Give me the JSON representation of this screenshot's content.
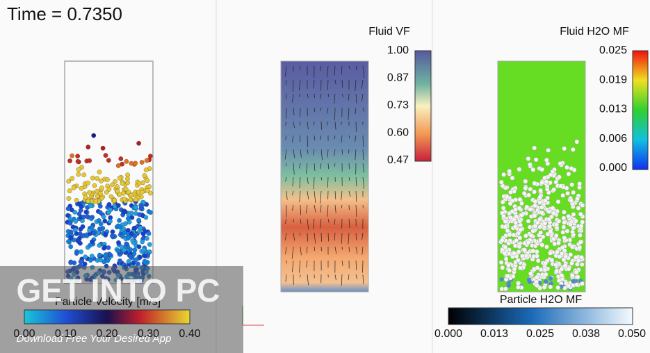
{
  "time_label": "Time = 0.7350",
  "panels": [
    {
      "colorbar": {
        "title": "Particle Velocity [m/s]",
        "ticks": [
          "0.00",
          "0.10",
          "0.20",
          "0.30",
          "0.40"
        ]
      }
    },
    {
      "colorbar": {
        "title": "Fluid VF",
        "ticks": [
          "1.00",
          "0.87",
          "0.73",
          "0.60",
          "0.47"
        ]
      }
    },
    {
      "colorbar": {
        "title": "Fluid H2O MF",
        "ticks": [
          "0.025",
          "0.019",
          "0.013",
          "0.006",
          "0.000"
        ]
      },
      "particle_colorbar": {
        "title": "Particle H2O MF",
        "ticks": [
          "0.000",
          "0.013",
          "0.025",
          "0.038",
          "0.050"
        ]
      }
    }
  ],
  "watermark": {
    "title": "GET INTO PC",
    "subtitle": "Download Free Your Desired App"
  }
}
